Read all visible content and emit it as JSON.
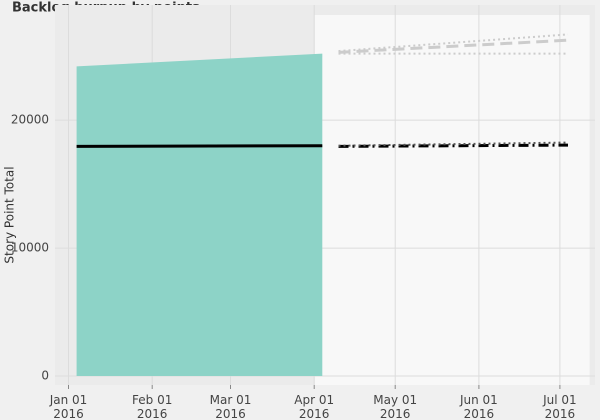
{
  "chart_data": {
    "type": "line",
    "title": "Backlog burnup by points",
    "y_label": "Story Point Total",
    "xlim": [
      "2015-12-27",
      "2016-07-14"
    ],
    "ylim": [
      -700,
      29000
    ],
    "xticks": [
      {
        "value": "2016-01-01",
        "label": "Jan 01\n2016"
      },
      {
        "value": "2016-02-01",
        "label": "Feb 01\n2016"
      },
      {
        "value": "2016-03-01",
        "label": "Mar 01\n2016"
      },
      {
        "value": "2016-04-01",
        "label": "Apr 01\n2016"
      },
      {
        "value": "2016-05-01",
        "label": "May 01\n2016"
      },
      {
        "value": "2016-06-01",
        "label": "Jun 01\n2016"
      },
      {
        "value": "2016-07-01",
        "label": "Jul 01\n2016"
      }
    ],
    "yticks": [
      0,
      10000,
      20000
    ],
    "grid": true,
    "shaded_x": [
      "2016-04-01",
      "2016-07-12"
    ],
    "shaded_color": "#f8f8f8",
    "series": [
      {
        "style": "area",
        "color": "#8dd3c7",
        "x": [
          "2016-01-04",
          "2016-04-04"
        ],
        "values": [
          24200,
          25200
        ]
      },
      {
        "style": "solid",
        "color": "#000000",
        "x": [
          "2016-01-04",
          "2016-04-04"
        ],
        "values": [
          17950,
          18000
        ]
      },
      {
        "style": "dashed",
        "color": "#cccccc",
        "x": [
          "2016-04-10",
          "2016-07-04"
        ],
        "values": [
          25300,
          26250
        ]
      },
      {
        "style": "dotted",
        "color": "#cccccc",
        "x": [
          "2016-04-10",
          "2016-07-04"
        ],
        "values": [
          25400,
          26700
        ]
      },
      {
        "style": "dotted",
        "color": "#cccccc",
        "x": [
          "2016-04-10",
          "2016-07-04"
        ],
        "values": [
          25200,
          25200
        ]
      },
      {
        "style": "dashdot",
        "color": "#000000",
        "x": [
          "2016-04-10",
          "2016-07-04"
        ],
        "values": [
          17950,
          18050
        ]
      },
      {
        "style": "dotted",
        "color": "#555555",
        "x": [
          "2016-04-10",
          "2016-07-04"
        ],
        "values": [
          18000,
          18250
        ]
      }
    ]
  }
}
